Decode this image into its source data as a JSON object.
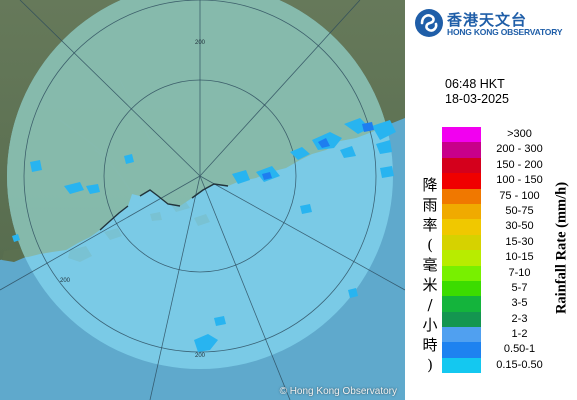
{
  "map": {
    "copyright": "© Hong Kong Observatory",
    "range_label": "200",
    "colors": {
      "sea": "#5fa9cc",
      "land": "#5d7352",
      "coverage_sea": "#7fd0ea",
      "coverage_land": "#89b7a0",
      "rain_light": "#28b4f0",
      "rain_medium": "#1e7ef0"
    }
  },
  "header": {
    "logo_zh": "香港天文台",
    "logo_en": "HONG KONG OBSERVATORY",
    "logo_icon": "hko-logo-icon"
  },
  "timestamp": {
    "time": "06:48 HKT",
    "date": "18-03-2025"
  },
  "legend": {
    "title_en": "Rainfall Rate (mm/h)",
    "title_zh": "降雨率(毫米/小時)",
    "title_zh_chars": [
      "降",
      "雨",
      "率",
      "(",
      "毫",
      "米",
      "/",
      "小",
      "時",
      ")"
    ],
    "items": [
      {
        "label": ">300",
        "color": "#f200f0"
      },
      {
        "label": "200 - 300",
        "color": "#c8008a"
      },
      {
        "label": "150 - 200",
        "color": "#d4001c"
      },
      {
        "label": "100 - 150",
        "color": "#f00000"
      },
      {
        "label": "75 - 100",
        "color": "#f07800"
      },
      {
        "label": "50-75",
        "color": "#f0aa00"
      },
      {
        "label": "30-50",
        "color": "#f0c800"
      },
      {
        "label": "15-30",
        "color": "#d6d200"
      },
      {
        "label": "10-15",
        "color": "#b8ec00"
      },
      {
        "label": "7-10",
        "color": "#78f000"
      },
      {
        "label": "5-7",
        "color": "#3cdc00"
      },
      {
        "label": "3-5",
        "color": "#14b43c"
      },
      {
        "label": "2-3",
        "color": "#149650"
      },
      {
        "label": "1-2",
        "color": "#50a0f0"
      },
      {
        "label": "0.50-1",
        "color": "#1e82f0"
      },
      {
        "label": "0.15-0.50",
        "color": "#14c8f0"
      }
    ]
  }
}
